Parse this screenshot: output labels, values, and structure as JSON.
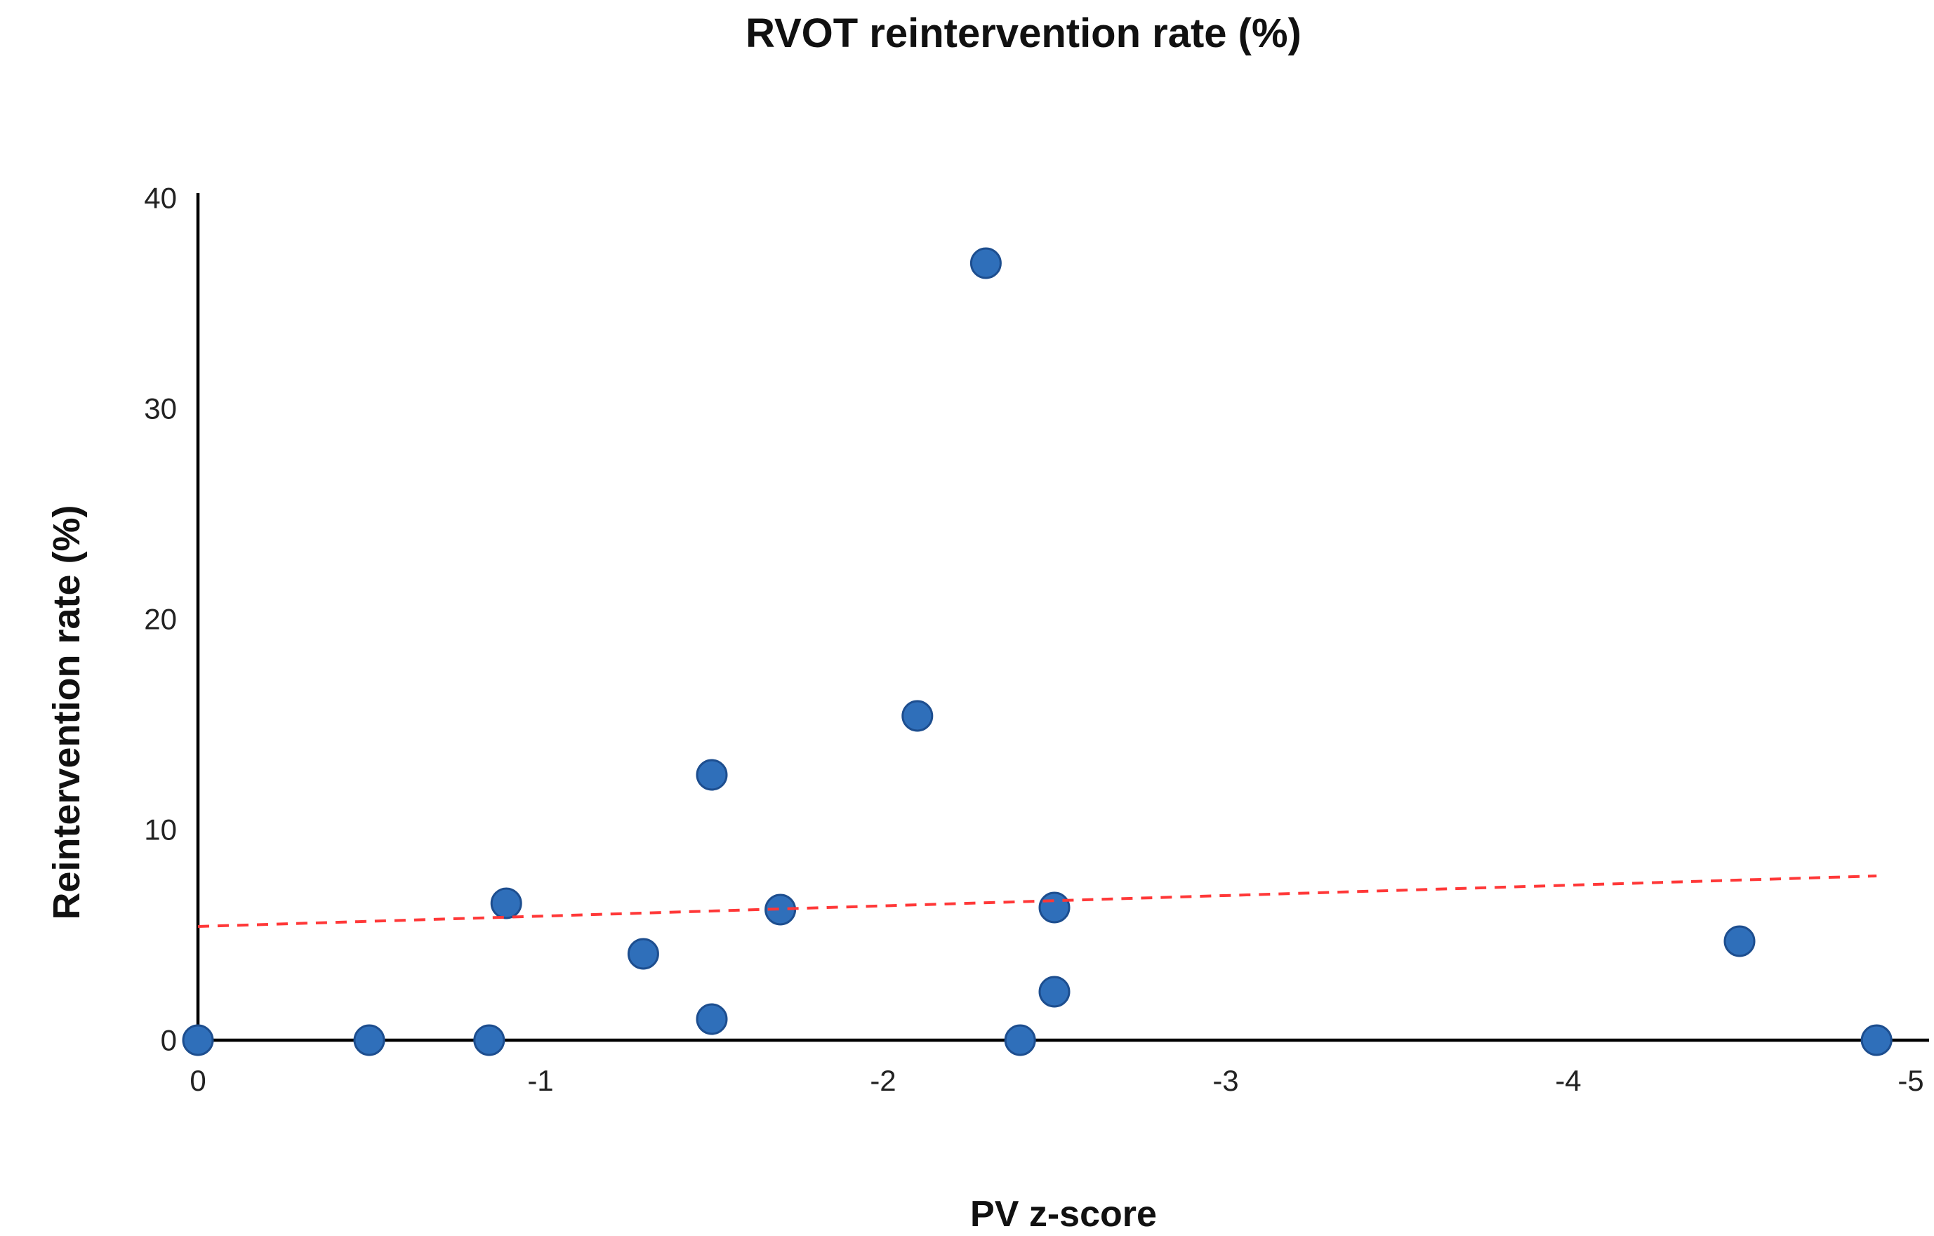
{
  "page": {
    "background": "#ffffff"
  },
  "chart_data": {
    "type": "scatter",
    "title": "RVOT reintervention rate (%)",
    "xlabel": "PV z-score",
    "ylabel": "Reintervention rate (%)",
    "xlim": [
      0,
      -5
    ],
    "ylim": [
      0,
      40
    ],
    "x_ticks": [
      0,
      -1,
      -2,
      -3,
      -4,
      -5
    ],
    "y_ticks": [
      0,
      10,
      20,
      30,
      40
    ],
    "grid": false,
    "legend": false,
    "axis_color": "#000000",
    "tick_text_color": "#222222",
    "marker_color": "#2f6fba",
    "marker_edge_color": "#1d4e8f",
    "series": [
      {
        "name": "RVOT reintervention rate",
        "marker": "circle",
        "color": "#2f6fba",
        "points": [
          {
            "x": 0,
            "y": 0
          },
          {
            "x": -0.5,
            "y": 0
          },
          {
            "x": -0.85,
            "y": 0
          },
          {
            "x": -0.9,
            "y": 6.5
          },
          {
            "x": -1.3,
            "y": 4.1
          },
          {
            "x": -1.5,
            "y": 1.0
          },
          {
            "x": -1.5,
            "y": 12.6
          },
          {
            "x": -1.7,
            "y": 6.2
          },
          {
            "x": -2.1,
            "y": 15.4
          },
          {
            "x": -2.3,
            "y": 36.9
          },
          {
            "x": -2.4,
            "y": 0
          },
          {
            "x": -2.5,
            "y": 2.3
          },
          {
            "x": -2.5,
            "y": 6.3
          },
          {
            "x": -4.5,
            "y": 4.7
          },
          {
            "x": -4.9,
            "y": 0
          }
        ]
      }
    ],
    "trendline": {
      "style": "dashed",
      "color": "#ff3838",
      "from": {
        "x": 0,
        "y": 5.4
      },
      "to": {
        "x": -4.9,
        "y": 7.8
      }
    }
  }
}
